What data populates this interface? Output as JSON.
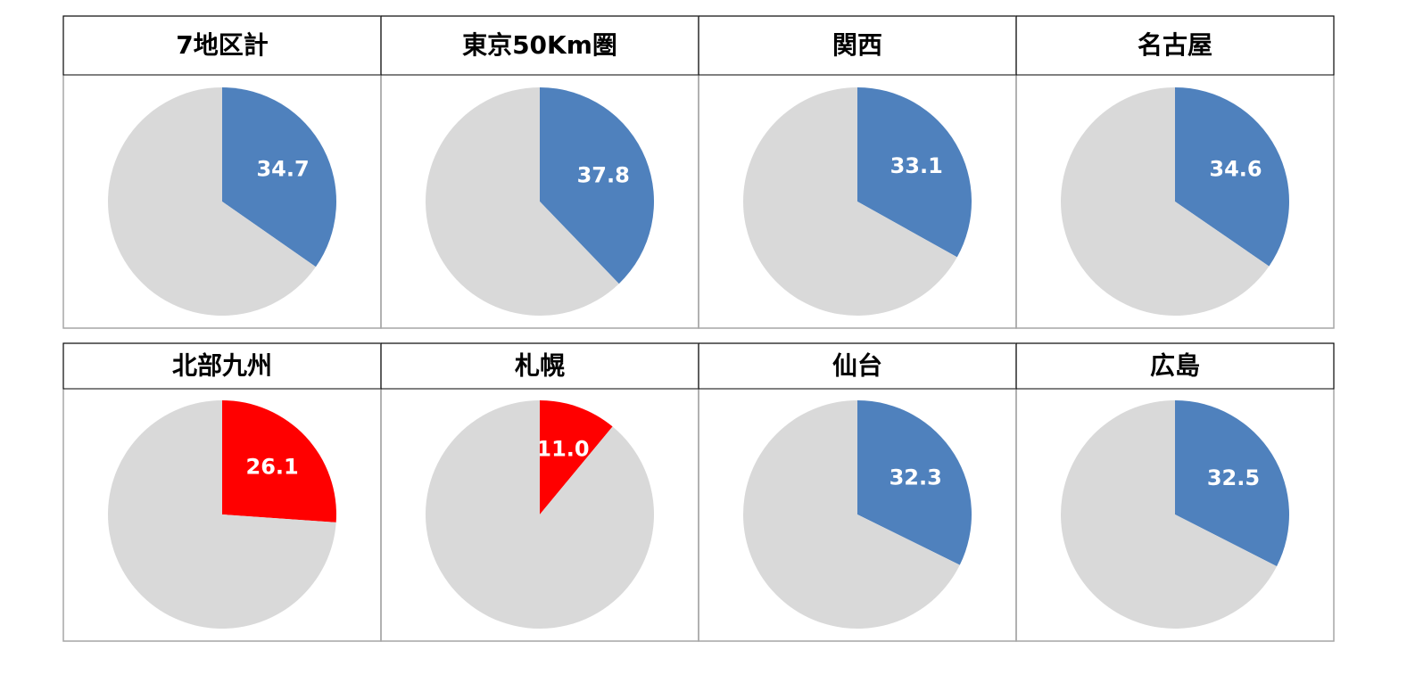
{
  "chart_data": [
    {
      "type": "pie",
      "title": "7地区計",
      "values": [
        34.7,
        65.3
      ],
      "colors": [
        "#4f81bd",
        "#d9d9d9"
      ]
    },
    {
      "type": "pie",
      "title": "東京50Km圏",
      "values": [
        37.8,
        62.2
      ],
      "colors": [
        "#4f81bd",
        "#d9d9d9"
      ]
    },
    {
      "type": "pie",
      "title": "関西",
      "values": [
        33.1,
        66.9
      ],
      "colors": [
        "#4f81bd",
        "#d9d9d9"
      ]
    },
    {
      "type": "pie",
      "title": "名古屋",
      "values": [
        34.6,
        65.4
      ],
      "colors": [
        "#4f81bd",
        "#d9d9d9"
      ]
    },
    {
      "type": "pie",
      "title": "北部九州",
      "values": [
        26.1,
        73.9
      ],
      "colors": [
        "#ff0000",
        "#d9d9d9"
      ]
    },
    {
      "type": "pie",
      "title": "札幌",
      "values": [
        11,
        89
      ],
      "value_labels": [
        "11.0",
        null
      ],
      "colors": [
        "#ff0000",
        "#d9d9d9"
      ]
    },
    {
      "type": "pie",
      "title": "仙台",
      "values": [
        32.3,
        67.7
      ],
      "colors": [
        "#4f81bd",
        "#d9d9d9"
      ]
    },
    {
      "type": "pie",
      "title": "広島",
      "values": [
        32.5,
        67.5
      ],
      "colors": [
        "#4f81bd",
        "#d9d9d9"
      ]
    }
  ]
}
